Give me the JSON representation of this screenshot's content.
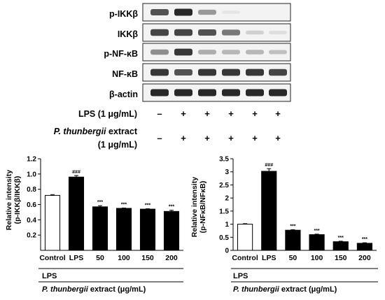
{
  "blot": {
    "labels": [
      "p-IKKβ",
      "IKKβ",
      "p-NF-κB",
      "NF-κB",
      "β-actin"
    ],
    "band_intensity": [
      [
        0.85,
        1.0,
        0.55,
        0.1,
        0.03,
        0.03
      ],
      [
        0.9,
        0.9,
        0.85,
        0.7,
        0.25,
        0.15
      ],
      [
        0.6,
        0.95,
        0.45,
        0.4,
        0.4,
        0.35
      ],
      [
        0.95,
        0.85,
        0.95,
        0.95,
        0.95,
        0.9
      ],
      [
        1.0,
        1.0,
        1.0,
        1.0,
        1.0,
        1.0
      ]
    ],
    "conditions": {
      "lps_label": "LPS (1 μg/mL)",
      "extract_label_italic": "P. thunbergii",
      "extract_label_rest": " extract",
      "extract_label_line2": "(1 μg/mL)",
      "lps_signs": [
        "–",
        "+",
        "+",
        "+",
        "+",
        "+"
      ],
      "extract_signs": [
        "–",
        "+",
        "+",
        "+",
        "+",
        "+"
      ]
    }
  },
  "chart_data": [
    {
      "type": "bar",
      "ylabel_line1": "Relative intensity",
      "ylabel_line2": "(p-IKKβ/IKKβ)",
      "ylim": [
        0,
        1.2
      ],
      "yticks": [
        "0.2",
        "0.4",
        "0.6",
        "0.8",
        "1.0",
        "1.2"
      ],
      "ytick_values": [
        0.2,
        0.4,
        0.6,
        0.8,
        1.0,
        1.2
      ],
      "categories": [
        "Control",
        "LPS",
        "50",
        "100",
        "150",
        "200"
      ],
      "values": [
        0.72,
        0.96,
        0.57,
        0.55,
        0.54,
        0.51
      ],
      "errors": [
        0.01,
        0.02,
        0.015,
        0.005,
        0.005,
        0.015
      ],
      "significance": [
        "",
        "###",
        "***",
        "***",
        "***",
        "***"
      ],
      "bar_colors": [
        "#ffffff",
        "#000000",
        "#000000",
        "#000000",
        "#000000",
        "#000000"
      ],
      "group_label": "LPS",
      "xlabel_italic": "P. thunbergii",
      "xlabel_rest": " extract (μg/mL)"
    },
    {
      "type": "bar",
      "ylabel_line1": "Relative intensity",
      "ylabel_line2": "(p-NFκB/NFκB)",
      "ylim": [
        0,
        3.5
      ],
      "yticks": [
        "0",
        "0.5",
        "1",
        "1.5",
        "2",
        "2.5",
        "3",
        "3.5"
      ],
      "ytick_values": [
        0,
        0.5,
        1,
        1.5,
        2,
        2.5,
        3,
        3.5
      ],
      "categories": [
        "Control",
        "LPS",
        "50",
        "100",
        "150",
        "200"
      ],
      "values": [
        1.0,
        3.02,
        0.77,
        0.6,
        0.33,
        0.27
      ],
      "errors": [
        0.02,
        0.1,
        0.02,
        0.02,
        0.02,
        0.02
      ],
      "significance": [
        "",
        "###",
        "***",
        "***",
        "***",
        "***"
      ],
      "bar_colors": [
        "#ffffff",
        "#000000",
        "#000000",
        "#000000",
        "#000000",
        "#000000"
      ],
      "group_label": "LPS",
      "xlabel_italic": "P. thunbergii",
      "xlabel_rest": " extract (μg/mL)"
    }
  ]
}
